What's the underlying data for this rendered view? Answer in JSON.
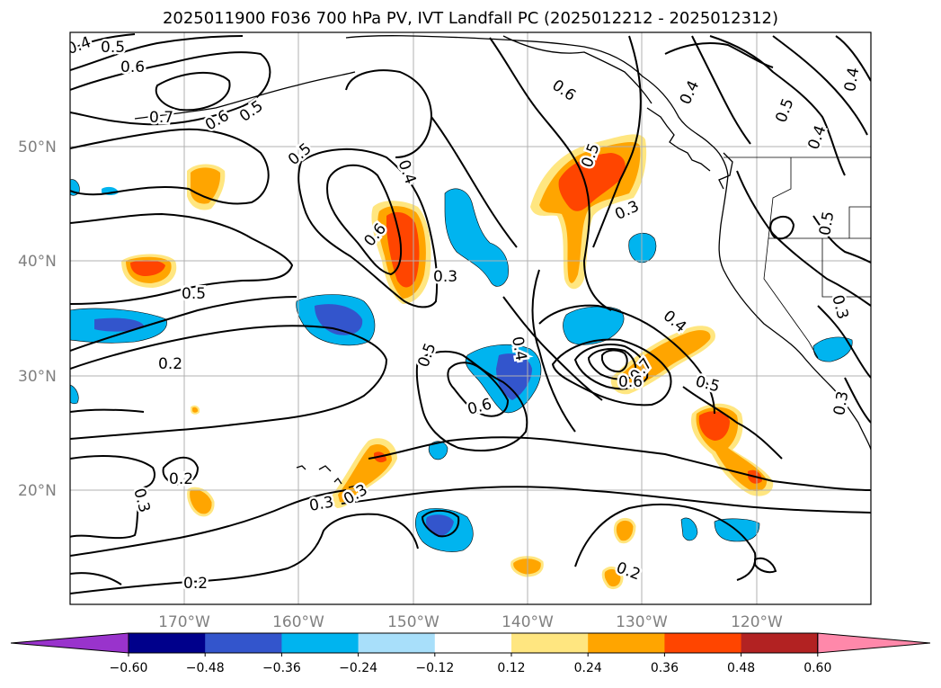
{
  "title": "2025011900 F036 700 hPa PV, IVT Landfall PC (2025012212 - 2025012312)",
  "map": {
    "lat_labels": [
      "50°N",
      "40°N",
      "30°N",
      "20°N"
    ],
    "lon_labels": [
      "170°W",
      "160°W",
      "150°W",
      "140°W",
      "130°W",
      "120°W"
    ],
    "contour_labels": [
      "0.4",
      "0.5",
      "0.6",
      "0.7",
      "0.6",
      "0.5",
      "0.5",
      "0.4",
      "0.6",
      "0.6",
      "0.5",
      "0.3",
      "0.4",
      "0.4",
      "0.5",
      "0.4",
      "0.5",
      "0.3",
      "0.5",
      "0.3",
      "0.2",
      "0.5",
      "0.4",
      "0.6",
      "0.4",
      "0.7",
      "0.6",
      "0.5",
      "0.3",
      "0.2",
      "0.3",
      "0.3",
      "0.2",
      "0.2",
      "0.3"
    ]
  },
  "colorbar": {
    "ticks": [
      "−0.60",
      "−0.48",
      "−0.36",
      "−0.24",
      "−0.12",
      "0.12",
      "0.24",
      "0.36",
      "0.48",
      "0.60"
    ],
    "colors": [
      "#9933cc",
      "#00008b",
      "#3355cc",
      "#00b4ef",
      "#a8dffa",
      "#ffffff",
      "#ffe680",
      "#ffa500",
      "#ff4500",
      "#b22222",
      "#ff88aa"
    ]
  }
}
